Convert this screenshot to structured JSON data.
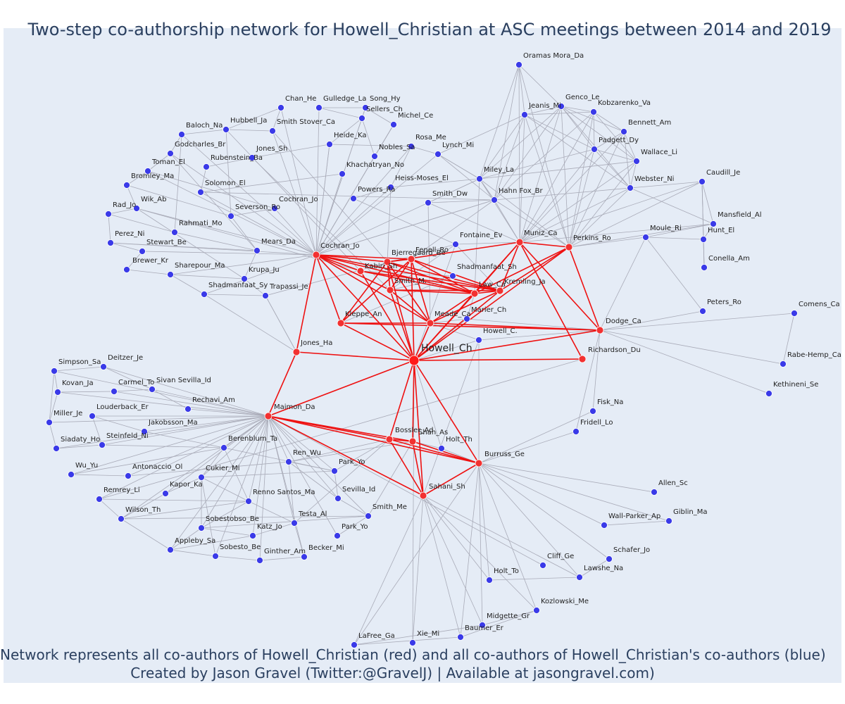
{
  "title": "Two-step co-authorship network for Howell_Christian at ASC meetings between 2014 and 2019",
  "captions": {
    "line1": "Network represents all co-authors of Howell_Christian (red) and all co-authors of Howell_Christian's co-authors (blue)",
    "line2": "Created by Jason Gravel (Twitter:@GravelJ) | Available at jasongravel.com)"
  },
  "colors": {
    "background": "#e5ecf6",
    "focal_node": "#ff1a1a",
    "coauthor_node": "#f23131",
    "second_step_node": "#3a3ae8",
    "red_edge": "#ee1111",
    "gray_edge": "#a9abb8",
    "title_text": "#2a3f5f"
  },
  "nodes": {
    "focal": "Howell_Ch",
    "coauthors": [
      "Cochran_Jo",
      "Bjerregaard_Be",
      "Fenell_Ro",
      "Kabiri_Sh",
      "Smith_M.",
      "Law_Ca",
      "Kremling_Ja",
      "Kleppe_An",
      "Meade_Ca",
      "Muniz_Ca",
      "Perkins_Ro",
      "Dodge_Ca",
      "Richardson_Du",
      "Jones_Ha",
      "Maimon_Da",
      "Bossler_Ad",
      "Shah_As",
      "Burruss_Ge",
      "Sahani_Sh"
    ],
    "second_step": [
      "Oramas Mora_Da",
      "Genco_Le",
      "Jeanis_Mi",
      "Kobzarenko_Va",
      "Bennett_Am",
      "Padgett_Dy",
      "Wallace_Li",
      "Webster_Ni",
      "Caudill_Je",
      "Mansfield_Al",
      "Hunt_El",
      "Conella_Am",
      "Moule_Ri",
      "Peters_Ro",
      "Comens_Ca",
      "Rabe-Hemp_Ca",
      "Kethineni_Se",
      "Gulledge_La",
      "Song_Hy",
      "Chan_He",
      "Sellers_Ch",
      "Michel_Ce",
      "Hubbell_Ja",
      "Smith Stover_Ca",
      "Baloch_Na",
      "Heide_Ka",
      "Rosa_Me",
      "Godcharles_Br",
      "Jones_Sh",
      "Nobles_Sa",
      "Lynch_Mi",
      "Toman_El",
      "Rubenstein_Ba",
      "Khachatryan_No",
      "Bromley_Ma",
      "Miley_La",
      "Heiss-Moses_El",
      "Solomon_El",
      "Powers_Ra",
      "Hahn Fox_Br",
      "Smith_Dw",
      "Wik_Ab",
      "Cochran_Jo",
      "Rad_Jo",
      "Severson_Ro",
      "Perez_Ni",
      "Rahmati_Mo",
      "Fontaine_Ev",
      "Stewart_Be",
      "Mears_Da",
      "Brewer_Kr",
      "Sharepour_Ma",
      "Shadmanfaat_Sh",
      "Krupa_Ju",
      "Shadmanfaat_Sy",
      "Trapassi_Je",
      "Marier_Ch",
      "Howell_C.",
      "Simpson_Sa",
      "Deitzer_Je",
      "Kovan_Ja",
      "Carmel_To",
      "Sivan Sevilla_Id",
      "Rechavi_Am",
      "Miller_Je",
      "Louderback_Er",
      "Jakobsson_Ma",
      "Siadaty_Ho",
      "Steinfeld_Ni",
      "Berenblum_Ta",
      "Wu_Yu",
      "Antonaccio_Ol",
      "Ren_Wu",
      "Park_Yo",
      "Cukier_Mi",
      "Fisk_Na",
      "Fridell_Lo",
      "Holt_Th",
      "Remrey_Li",
      "Kapor_Ka",
      "Renno Santos_Ma",
      "Sevilla_Id",
      "Allen_Sc",
      "Wilson_Th",
      "Testa_Al",
      "Smith_Me",
      "Giblin_Ma",
      "Wall-Parker_Ap",
      "Sobestobso_Be",
      "Katz_Jo",
      "Park_Yo",
      "Appleby_Sa",
      "Sobesto_Be",
      "Ginther_Am",
      "Becker_Mi",
      "Cliff_Ge",
      "Schafer_Jo",
      "Lawshe_Na",
      "Holt_To",
      "Kozlowski_Me",
      "Midgette_Gr",
      "Baumer_Er",
      "LaFree_Ga",
      "Xie_Mi"
    ]
  }
}
